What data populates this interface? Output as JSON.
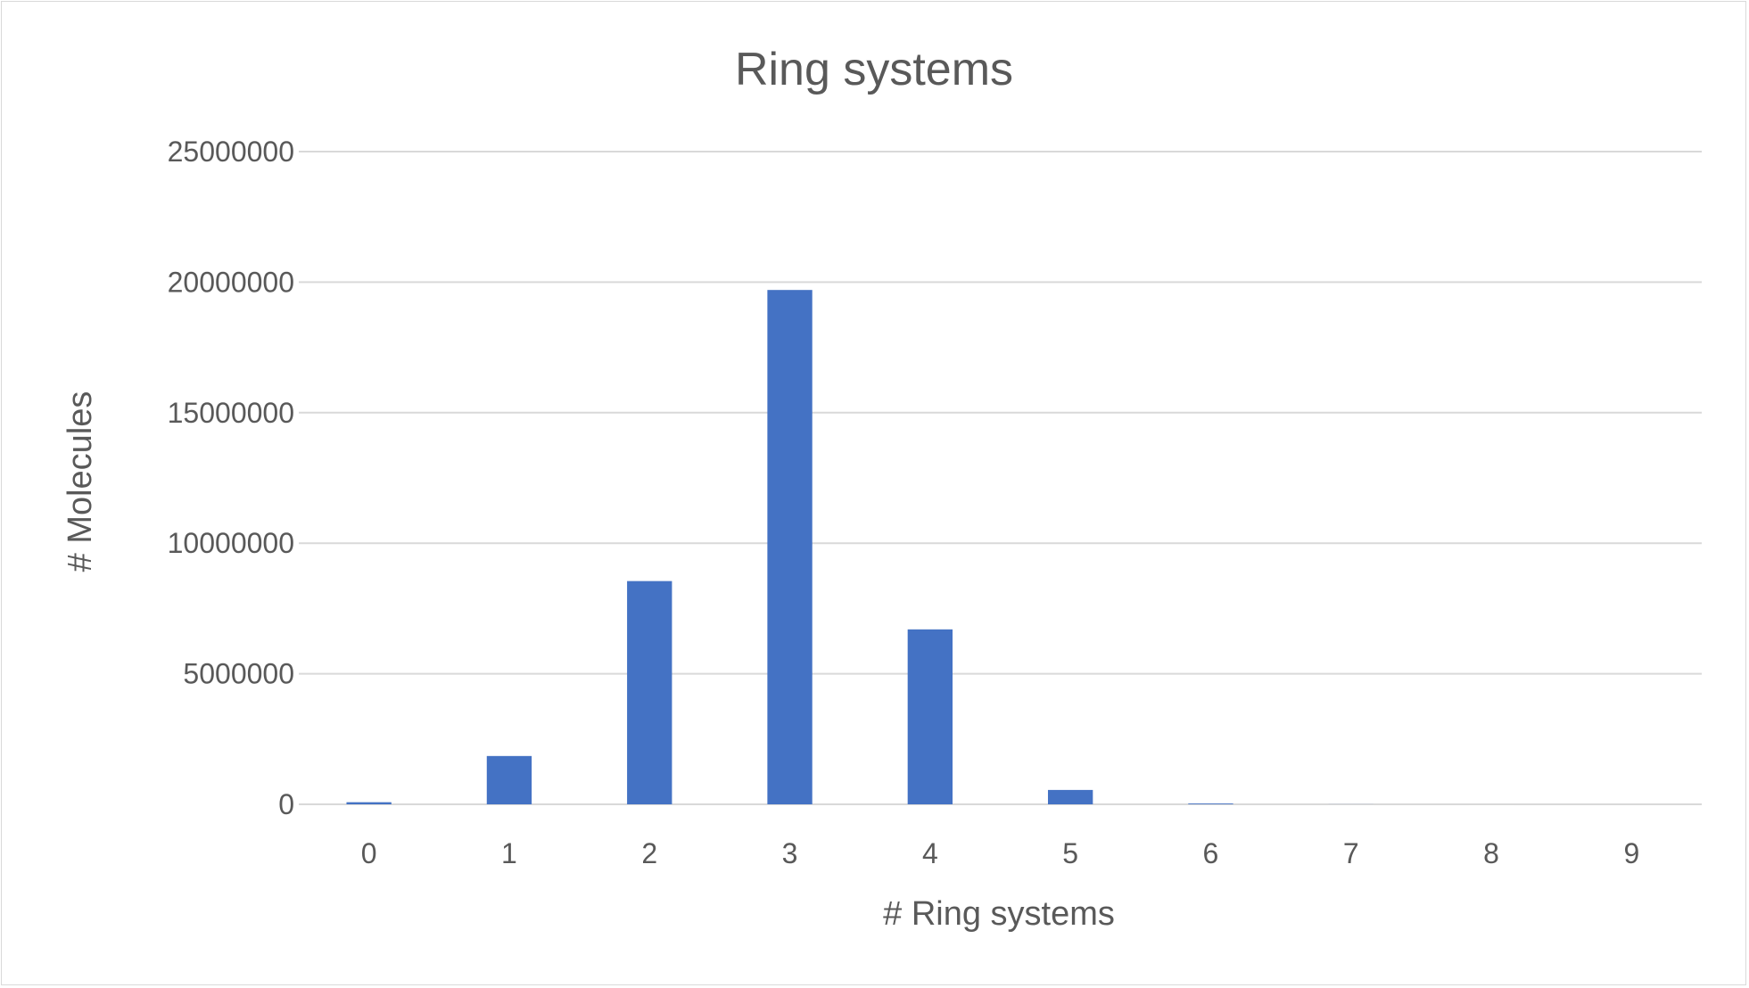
{
  "chart_data": {
    "type": "bar",
    "title": "Ring systems",
    "xlabel": "# Ring systems",
    "ylabel": "# Molecules",
    "categories": [
      "0",
      "1",
      "2",
      "3",
      "4",
      "5",
      "6",
      "7",
      "8",
      "9"
    ],
    "values": [
      80000,
      1850000,
      8550000,
      19700000,
      6700000,
      550000,
      30000,
      2000,
      200,
      20
    ],
    "ylim": [
      0,
      25000000
    ],
    "yticks": [
      0,
      5000000,
      10000000,
      15000000,
      20000000,
      25000000
    ],
    "grid": true,
    "legend": "none",
    "colors": {
      "bar": "#4472c4",
      "text": "#595959",
      "grid": "#d9d9d9"
    }
  }
}
